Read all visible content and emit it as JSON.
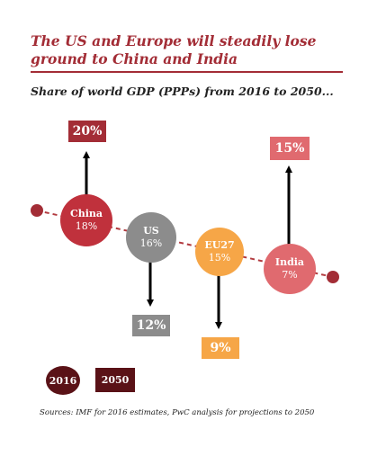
{
  "title": "The US and Europe will steadily lose ground to China and India",
  "subtitle": "Share of world GDP (PPPs) from 2016 to 2050...",
  "colors": {
    "title_red": "#a32d36",
    "china": "#c0313c",
    "us": "#8c8c8c",
    "eu": "#f6a647",
    "india": "#e06a6f",
    "dark": "#5a1217",
    "line": "#b23a3f"
  },
  "regions": [
    {
      "name": "China",
      "share_2016": "18%",
      "share_2050": "20%",
      "direction": "up"
    },
    {
      "name": "US",
      "share_2016": "16%",
      "share_2050": "12%",
      "direction": "down"
    },
    {
      "name": "EU27",
      "share_2016": "15%",
      "share_2050": "9%",
      "direction": "down"
    },
    {
      "name": "India",
      "share_2016": "7%",
      "share_2050": "15%",
      "direction": "up"
    }
  ],
  "legend": {
    "label_2016": "2016",
    "label_2050": "2050"
  },
  "source": "Sources: IMF for 2016 estimates, PwC analysis for projections to 2050"
}
